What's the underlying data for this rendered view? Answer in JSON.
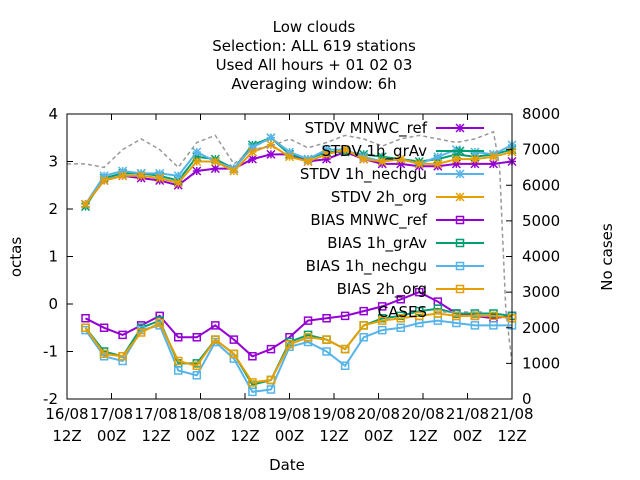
{
  "chart_data": {
    "type": "line",
    "title_lines": [
      "Low clouds",
      "Selection: ALL    619 stations",
      "Used  All hours  + 01 02 03",
      "Averaging window:  6h"
    ],
    "xlabel": "Date",
    "ylabel": "octas",
    "y2label": "No cases",
    "ylim": [
      -2,
      4
    ],
    "y2lim": [
      0,
      8000
    ],
    "yticks": [
      "4",
      "3",
      "2",
      "1",
      "0",
      "-1",
      "-2"
    ],
    "y2ticks": [
      "8000",
      "7000",
      "6000",
      "5000",
      "4000",
      "3000",
      "2000",
      "1000",
      "0"
    ],
    "xtick_labels": [
      [
        "16/08",
        "12Z"
      ],
      [
        "17/08",
        "00Z"
      ],
      [
        "17/08",
        "12Z"
      ],
      [
        "18/08",
        "00Z"
      ],
      [
        "18/08",
        "12Z"
      ],
      [
        "19/08",
        "00Z"
      ],
      [
        "19/08",
        "12Z"
      ],
      [
        "20/08",
        "00Z"
      ],
      [
        "20/08",
        "12Z"
      ],
      [
        "21/08",
        "00Z"
      ],
      [
        "21/08",
        "12Z"
      ]
    ],
    "x": [
      3,
      6,
      9,
      12,
      15,
      18,
      21,
      24,
      27,
      30,
      33,
      36,
      39,
      42,
      45,
      48,
      51,
      54,
      57,
      60,
      63,
      66,
      69,
      72
    ],
    "xlim": [
      0,
      72
    ],
    "legend_position": "top-right",
    "series": [
      {
        "name": "STDV MNWC_ref",
        "color": "#9400d3",
        "marker": "x",
        "axis": "y",
        "values": [
          2.1,
          2.6,
          2.7,
          2.65,
          2.6,
          2.5,
          2.8,
          2.85,
          2.85,
          3.05,
          3.15,
          3.15,
          3.0,
          3.05,
          3.2,
          3.05,
          2.95,
          2.95,
          2.9,
          2.9,
          2.95,
          2.95,
          2.95,
          3.0
        ]
      },
      {
        "name": "STDV 1h_grAv",
        "color": "#009e73",
        "marker": "x",
        "axis": "y",
        "values": [
          2.05,
          2.65,
          2.75,
          2.75,
          2.7,
          2.6,
          3.1,
          3.05,
          2.85,
          3.35,
          3.5,
          3.15,
          3.05,
          3.2,
          3.2,
          3.15,
          3.1,
          3.05,
          3.0,
          3.05,
          3.15,
          3.1,
          3.15,
          3.25
        ]
      },
      {
        "name": "STDV 1h_nechgu",
        "color": "#56b4e9",
        "marker": "x",
        "axis": "y",
        "values": [
          2.1,
          2.7,
          2.8,
          2.75,
          2.75,
          2.7,
          3.2,
          3.0,
          2.85,
          3.3,
          3.5,
          3.2,
          3.05,
          3.25,
          3.25,
          3.1,
          3.0,
          3.05,
          2.95,
          3.1,
          3.25,
          3.2,
          3.15,
          3.35
        ]
      },
      {
        "name": "STDV 2h_org",
        "color": "#e69f00",
        "marker": "x",
        "axis": "y",
        "values": [
          2.1,
          2.6,
          2.7,
          2.7,
          2.65,
          2.55,
          3.0,
          3.0,
          2.8,
          3.2,
          3.35,
          3.1,
          3.0,
          3.15,
          3.25,
          3.05,
          3.0,
          3.05,
          2.95,
          2.95,
          3.05,
          3.05,
          3.1,
          3.2
        ]
      },
      {
        "name": "BIAS MNWC_ref",
        "color": "#9400d3",
        "marker": "square",
        "axis": "y",
        "values": [
          -0.3,
          -0.5,
          -0.65,
          -0.45,
          -0.25,
          -0.7,
          -0.7,
          -0.45,
          -0.75,
          -1.1,
          -0.95,
          -0.7,
          -0.35,
          -0.3,
          -0.25,
          -0.15,
          -0.05,
          0.1,
          0.25,
          0.05,
          -0.2,
          -0.25,
          -0.3,
          -0.25
        ]
      },
      {
        "name": "BIAS 1h_grAv",
        "color": "#009e73",
        "marker": "square",
        "axis": "y",
        "values": [
          -0.5,
          -1.0,
          -1.1,
          -0.5,
          -0.35,
          -1.25,
          -1.25,
          -0.75,
          -1.05,
          -1.7,
          -1.6,
          -0.8,
          -0.65,
          -0.75,
          -0.95,
          -0.45,
          -0.3,
          -0.25,
          -0.15,
          -0.1,
          -0.2,
          -0.2,
          -0.2,
          -0.25
        ]
      },
      {
        "name": "BIAS 1h_nechgu",
        "color": "#56b4e9",
        "marker": "square",
        "axis": "y",
        "values": [
          -0.55,
          -1.1,
          -1.2,
          -0.55,
          -0.45,
          -1.4,
          -1.5,
          -0.8,
          -1.15,
          -1.85,
          -1.8,
          -0.9,
          -0.8,
          -1.0,
          -1.3,
          -0.7,
          -0.55,
          -0.5,
          -0.4,
          -0.35,
          -0.4,
          -0.45,
          -0.45,
          -0.45
        ]
      },
      {
        "name": "BIAS 2h_org",
        "color": "#e69f00",
        "marker": "square",
        "axis": "y",
        "values": [
          -0.5,
          -1.05,
          -1.1,
          -0.6,
          -0.4,
          -1.2,
          -1.3,
          -0.75,
          -1.05,
          -1.65,
          -1.6,
          -0.85,
          -0.7,
          -0.75,
          -0.95,
          -0.45,
          -0.35,
          -0.3,
          -0.25,
          -0.2,
          -0.25,
          -0.25,
          -0.25,
          -0.3
        ]
      },
      {
        "name": "CASES",
        "color": "#999999",
        "dashed": true,
        "axis": "y2",
        "x": [
          0,
          3,
          6,
          9,
          12,
          15,
          18,
          21,
          24,
          27,
          30,
          33,
          36,
          39,
          42,
          45,
          48,
          51,
          54,
          57,
          60,
          63,
          66,
          69,
          70,
          71,
          72
        ],
        "values": [
          6600,
          6600,
          6500,
          7000,
          7300,
          7000,
          6500,
          7200,
          7400,
          6600,
          7000,
          7100,
          7300,
          7050,
          7200,
          7400,
          7300,
          7100,
          7300,
          7400,
          7300,
          7200,
          7300,
          7500,
          6500,
          2500,
          1000
        ]
      }
    ]
  }
}
